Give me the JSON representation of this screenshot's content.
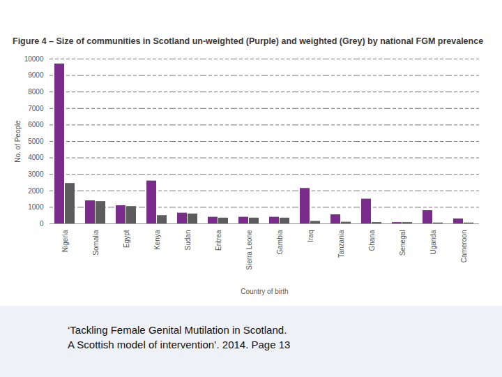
{
  "chart_data": {
    "type": "bar",
    "title": "Figure 4 – Size of communities in Scotland un-weighted (Purple) and weighted (Grey) by national FGM prevalence",
    "caption": [
      "‘Tackling Female Genital Mutilation in Scotland.",
      "A Scottish model of intervention’.   2014. Page 13"
    ],
    "x_label": "Country of birth",
    "y_label": "No. of People",
    "categories": [
      "Nigeria",
      "Somalia",
      "Egypt",
      "Kenya",
      "Sudan",
      "Eritrea",
      "Sierra Leone",
      "Gambia",
      "Iraq",
      "Tanzania",
      "Ghana",
      "Senegal",
      "Uganda",
      "Cameroon"
    ],
    "series": [
      {
        "color": "#7b2b8c",
        "values": [
          9700,
          1400,
          1100,
          2600,
          650,
          400,
          400,
          400,
          2150,
          550,
          1500,
          80,
          800,
          300
        ]
      },
      {
        "color": "#5c5c5e",
        "values": [
          2450,
          1350,
          1050,
          500,
          600,
          350,
          350,
          350,
          150,
          100,
          80,
          80,
          50,
          50
        ]
      }
    ],
    "ylim": [
      0,
      10000
    ],
    "yticks": [
      0,
      1000,
      2000,
      3000,
      4000,
      5000,
      6000,
      7000,
      8000,
      9000,
      10000
    ],
    "grid": true
  }
}
